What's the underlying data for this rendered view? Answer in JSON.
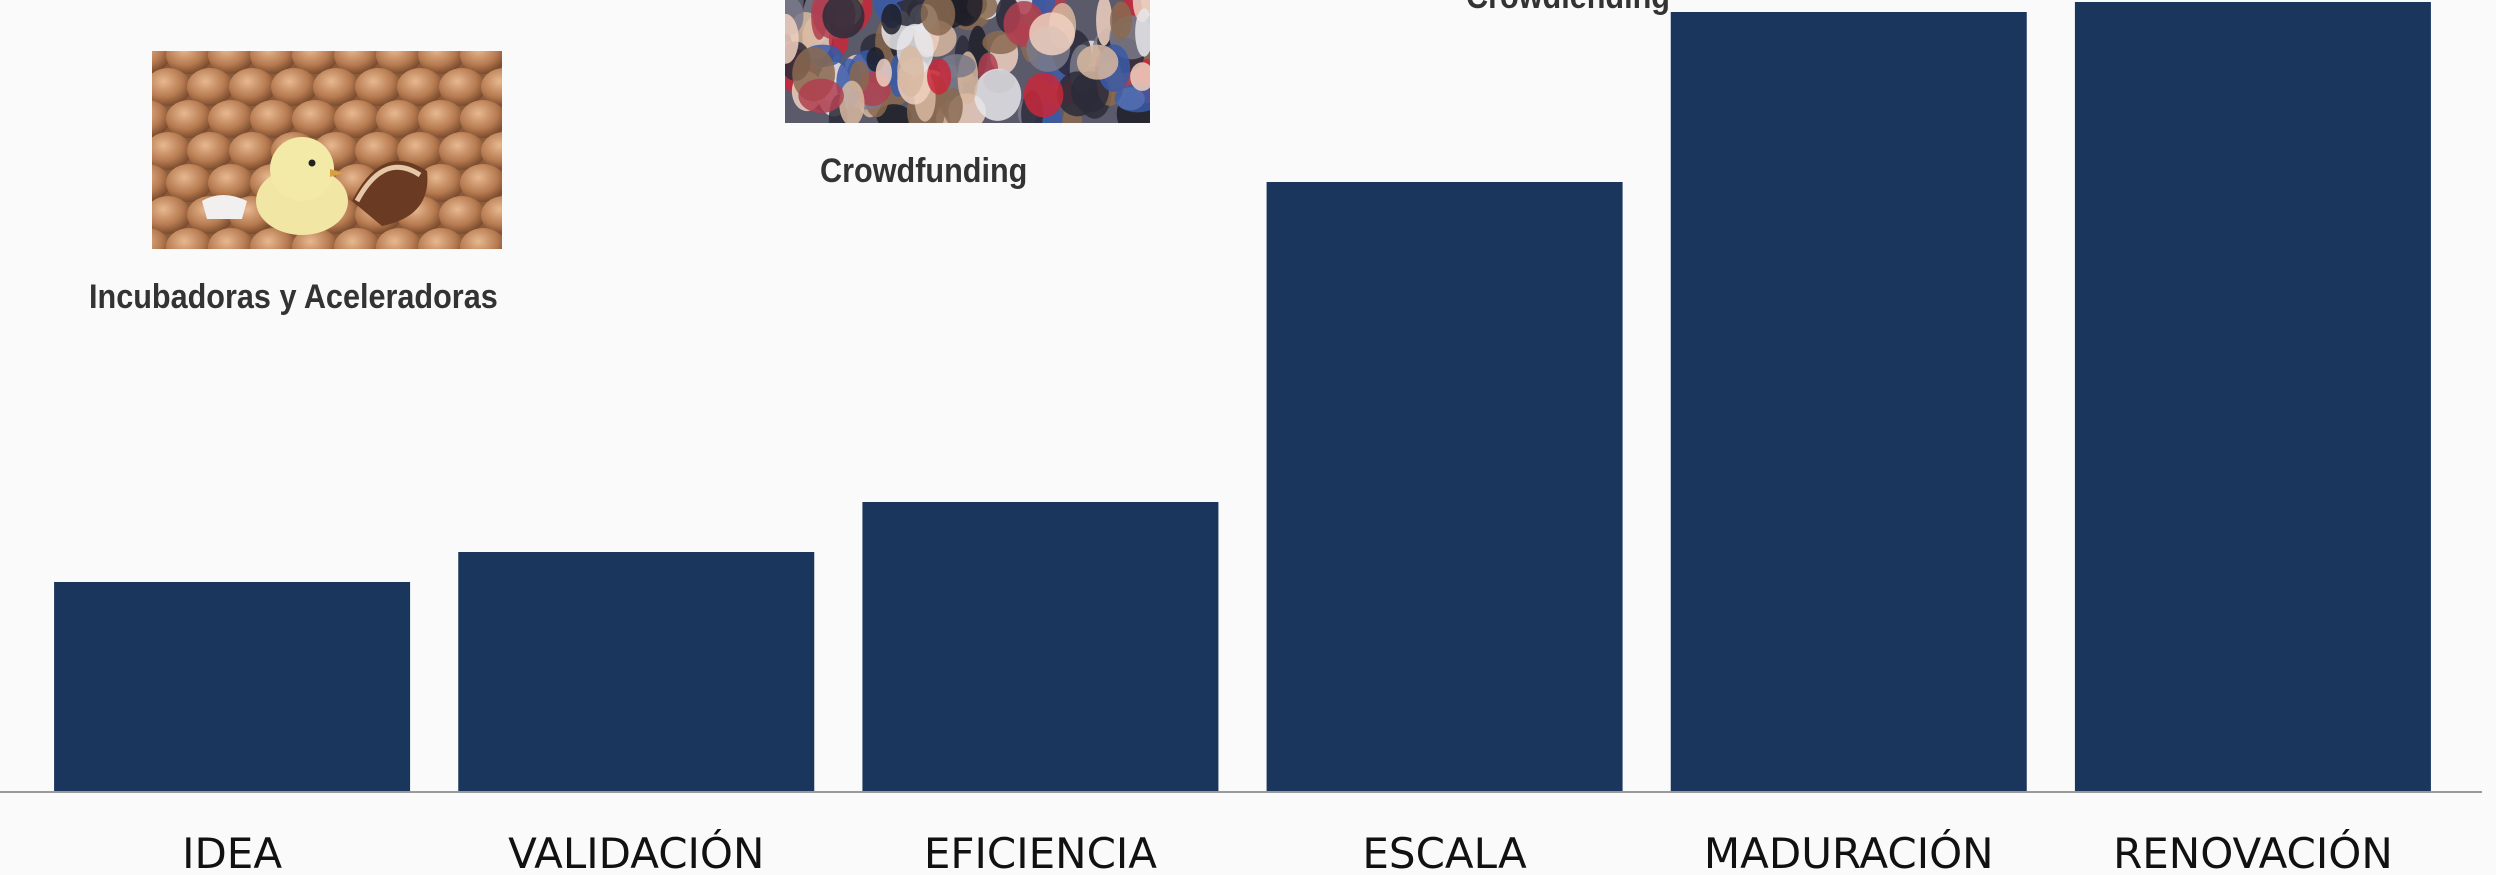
{
  "chart_data": {
    "type": "bar",
    "categories": [
      "IDEA",
      "VALIDACIÓN",
      "EFICIENCIA",
      "ESCALA",
      "MADURACIÓN",
      "RENOVACIÓN"
    ],
    "values": [
      21,
      24,
      29,
      61,
      78,
      79
    ],
    "title": "",
    "xlabel": "",
    "ylabel": "",
    "ylim": [
      0,
      79
    ],
    "bar_color": "#1a365d",
    "grid": false,
    "legend": "none"
  },
  "annotations": {
    "incubadoras": {
      "label": "Incubadoras y Aceleradoras",
      "image": "chick-hatching-eggs-image"
    },
    "crowdfunding": {
      "label": "Crowdfunding",
      "image": "crowd-of-people-image"
    },
    "crowdlending": {
      "label": "Crowdlending"
    }
  },
  "colors": {
    "background": "#fafafa",
    "bar": "#1a365d",
    "axis": "#9a9a9a",
    "label": "#333333"
  }
}
